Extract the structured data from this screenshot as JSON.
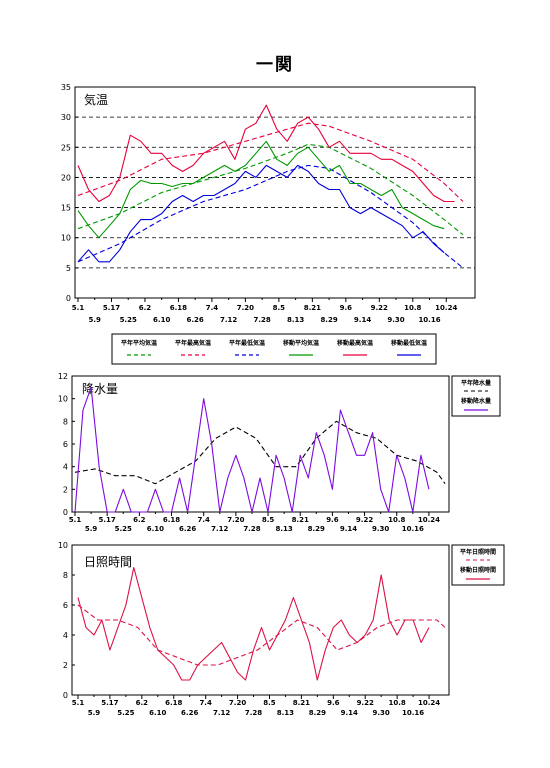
{
  "page_title": "一関",
  "colors": {
    "green": "#009900",
    "red": "#e8003a",
    "blue": "#0000dd",
    "purple": "#7d0ae0",
    "crimson": "#dd1144",
    "black": "#000000"
  },
  "chart_data": [
    {
      "type": "line",
      "title": "気温",
      "ylim": [
        0,
        35
      ],
      "yticks": [
        "0",
        "5",
        "10",
        "15",
        "20",
        "25",
        "30",
        "35"
      ],
      "x_range_days": [
        0,
        184
      ],
      "x_ticks_top": [
        "5.1",
        "5.17",
        "6.2",
        "6.18",
        "7.4",
        "7.20",
        "8.5",
        "8.21",
        "9.6",
        "9.22",
        "10.8",
        "10.24"
      ],
      "x_ticks_bottom": [
        "5.9",
        "5.25",
        "6.10",
        "6.26",
        "7.12",
        "7.28",
        "8.13",
        "8.29",
        "9.14",
        "9.30",
        "10.16"
      ],
      "grid": "dashed-horizontal",
      "legend_position": "bottom",
      "series": [
        {
          "name": "平年平均気温",
          "style": "dashed",
          "color": "#009900",
          "x": [
            0,
            20,
            40,
            60,
            80,
            100,
            110,
            120,
            140,
            160,
            175,
            184
          ],
          "y": [
            11.5,
            14,
            17.5,
            19.5,
            21.5,
            24,
            25.5,
            25,
            21.5,
            17,
            13,
            10.5
          ]
        },
        {
          "name": "平年最高気温",
          "style": "dashed",
          "color": "#e8003a",
          "x": [
            0,
            20,
            40,
            60,
            80,
            100,
            110,
            120,
            140,
            160,
            175,
            184
          ],
          "y": [
            17,
            19.5,
            23,
            24,
            26,
            28,
            29,
            28.5,
            26,
            23,
            19,
            16
          ]
        },
        {
          "name": "平年最低気温",
          "style": "dashed",
          "color": "#0000dd",
          "x": [
            0,
            20,
            40,
            60,
            80,
            100,
            110,
            120,
            140,
            160,
            175,
            184
          ],
          "y": [
            6,
            9,
            13,
            16,
            18,
            21,
            22,
            21.5,
            17.5,
            12.5,
            7.5,
            5
          ]
        },
        {
          "name": "移動平均気温",
          "style": "solid",
          "color": "#009900",
          "x": [
            0,
            5,
            10,
            15,
            20,
            25,
            30,
            35,
            40,
            45,
            50,
            55,
            60,
            65,
            70,
            75,
            80,
            85,
            90,
            95,
            100,
            105,
            110,
            115,
            120,
            125,
            130,
            135,
            140,
            145,
            150,
            155,
            160,
            165,
            170,
            175
          ],
          "y": [
            14.5,
            12,
            10,
            12,
            14,
            18,
            19.5,
            19,
            19,
            18.5,
            19,
            19,
            20,
            21,
            22,
            21,
            22,
            24,
            26,
            23,
            22,
            24,
            25,
            23,
            21,
            22,
            19,
            19,
            18,
            17,
            18,
            15,
            14,
            13,
            12,
            11.5
          ]
        },
        {
          "name": "移動最高気温",
          "style": "solid",
          "color": "#e8003a",
          "x": [
            0,
            5,
            10,
            15,
            20,
            25,
            30,
            35,
            40,
            45,
            50,
            55,
            60,
            65,
            70,
            75,
            80,
            85,
            90,
            95,
            100,
            105,
            110,
            115,
            120,
            125,
            130,
            135,
            140,
            145,
            150,
            155,
            160,
            165,
            170,
            175,
            180
          ],
          "y": [
            22,
            18,
            16,
            17,
            20,
            27,
            26,
            24,
            24,
            22,
            21,
            22,
            24,
            25,
            26,
            23,
            28,
            29,
            32,
            28,
            26,
            29,
            30,
            28,
            25,
            26,
            24,
            24,
            24,
            23,
            23,
            22,
            21,
            19,
            17,
            16,
            16
          ]
        },
        {
          "name": "移動最低気温",
          "style": "solid",
          "color": "#0000dd",
          "x": [
            0,
            5,
            10,
            15,
            20,
            25,
            30,
            35,
            40,
            45,
            50,
            55,
            60,
            65,
            70,
            75,
            80,
            85,
            90,
            95,
            100,
            105,
            110,
            115,
            120,
            125,
            130,
            135,
            140,
            145,
            150,
            155,
            160,
            165,
            170,
            175
          ],
          "y": [
            6,
            8,
            6,
            6,
            8,
            11,
            13,
            13,
            14,
            16,
            17,
            16,
            17,
            17,
            18,
            19,
            21,
            20,
            22,
            21,
            20,
            22,
            21,
            19,
            18,
            18,
            15,
            14,
            15,
            14,
            13,
            12,
            10,
            11,
            9,
            7.5
          ]
        }
      ]
    },
    {
      "type": "line",
      "title": "降水量",
      "ylim": [
        0,
        12
      ],
      "yticks": [
        "0",
        "2",
        "4",
        "6",
        "8",
        "10",
        "12"
      ],
      "x_range_days": [
        0,
        184
      ],
      "x_ticks_top": [
        "5.1",
        "5.17",
        "6.2",
        "6.18",
        "7.4",
        "7.20",
        "8.5",
        "8.21",
        "9.6",
        "9.22",
        "10.8",
        "10.24"
      ],
      "x_ticks_bottom": [
        "5.9",
        "5.25",
        "6.10",
        "6.26",
        "7.12",
        "7.28",
        "8.13",
        "8.29",
        "9.14",
        "9.30",
        "10.16"
      ],
      "legend_position": "right",
      "series": [
        {
          "name": "平年降水量",
          "style": "dashed",
          "color": "#000000",
          "x": [
            0,
            10,
            20,
            30,
            40,
            50,
            60,
            70,
            80,
            90,
            100,
            110,
            120,
            130,
            140,
            150,
            160,
            170,
            180,
            184
          ],
          "y": [
            3.5,
            3.8,
            3.2,
            3.2,
            2.5,
            3.5,
            4.5,
            6.5,
            7.5,
            6.5,
            4,
            4,
            6.5,
            8,
            7,
            6.5,
            5,
            4.5,
            3.5,
            2.5
          ]
        },
        {
          "name": "移動降水量",
          "style": "solid",
          "color": "#7d0ae0",
          "x": [
            0,
            4,
            8,
            12,
            16,
            20,
            24,
            28,
            32,
            36,
            40,
            44,
            48,
            52,
            56,
            60,
            64,
            68,
            72,
            76,
            80,
            84,
            88,
            92,
            96,
            100,
            104,
            108,
            112,
            116,
            120,
            124,
            128,
            132,
            136,
            140,
            144,
            148,
            152,
            156,
            160,
            164,
            168,
            172,
            176
          ],
          "y": [
            0,
            9,
            11,
            4,
            0,
            0,
            2,
            0,
            0,
            0,
            2,
            0,
            0,
            3,
            0,
            5,
            10,
            6,
            0,
            3,
            5,
            3,
            0,
            3,
            0,
            5,
            3,
            0,
            5,
            3,
            7,
            5,
            2,
            9,
            7,
            5,
            5,
            7,
            2,
            0,
            5,
            3,
            0,
            5,
            2
          ]
        }
      ]
    },
    {
      "type": "line",
      "title": "日照時間",
      "ylim": [
        0,
        10
      ],
      "yticks": [
        "0",
        "2",
        "4",
        "6",
        "8",
        "10"
      ],
      "x_range_days": [
        0,
        184
      ],
      "x_ticks_top": [
        "5.1",
        "5.17",
        "6.2",
        "6.18",
        "7.4",
        "7.20",
        "8.5",
        "8.21",
        "9.6",
        "9.22",
        "10.8",
        "10.24"
      ],
      "x_ticks_bottom": [
        "5.9",
        "5.25",
        "6.10",
        "6.26",
        "7.12",
        "7.28",
        "8.13",
        "8.29",
        "9.14",
        "9.30",
        "10.16"
      ],
      "legend_position": "right",
      "series": [
        {
          "name": "平年日照時間",
          "style": "dashed",
          "color": "#dd1144",
          "x": [
            0,
            10,
            20,
            30,
            40,
            50,
            60,
            70,
            80,
            90,
            100,
            110,
            120,
            130,
            140,
            150,
            160,
            170,
            180,
            184
          ],
          "y": [
            6,
            5,
            5,
            4.5,
            3,
            2.5,
            2,
            2,
            2.5,
            3,
            4,
            5,
            4.5,
            3,
            3.5,
            4.5,
            5,
            5,
            5,
            4.5
          ]
        },
        {
          "name": "移動日照時間",
          "style": "solid",
          "color": "#dd1144",
          "x": [
            0,
            4,
            8,
            12,
            16,
            20,
            24,
            28,
            32,
            36,
            40,
            44,
            48,
            52,
            56,
            60,
            64,
            68,
            72,
            76,
            80,
            84,
            88,
            92,
            96,
            100,
            104,
            108,
            112,
            116,
            120,
            124,
            128,
            132,
            136,
            140,
            144,
            148,
            152,
            156,
            160,
            164,
            168,
            172,
            176
          ],
          "y": [
            6.5,
            4.5,
            4,
            5,
            3,
            4.5,
            6,
            8.5,
            6.5,
            4.5,
            3,
            2.5,
            2,
            1,
            1,
            2,
            2.5,
            3,
            3.5,
            2.5,
            1.5,
            1,
            3,
            4.5,
            3,
            4,
            5,
            6.5,
            5,
            3.5,
            1,
            3,
            4.5,
            5,
            4,
            3.5,
            4,
            5,
            8,
            5,
            4,
            5,
            5,
            3.5,
            4.5
          ]
        }
      ]
    }
  ],
  "legends": {
    "temp": [
      "平年平均気温",
      "平年最高気温",
      "平年最低気温",
      "移動平均気温",
      "移動最高気温",
      "移動最低気温"
    ],
    "rain": [
      "平年降水量",
      "移動降水量"
    ],
    "sun": [
      "平年日照時間",
      "移動日照時間"
    ]
  }
}
